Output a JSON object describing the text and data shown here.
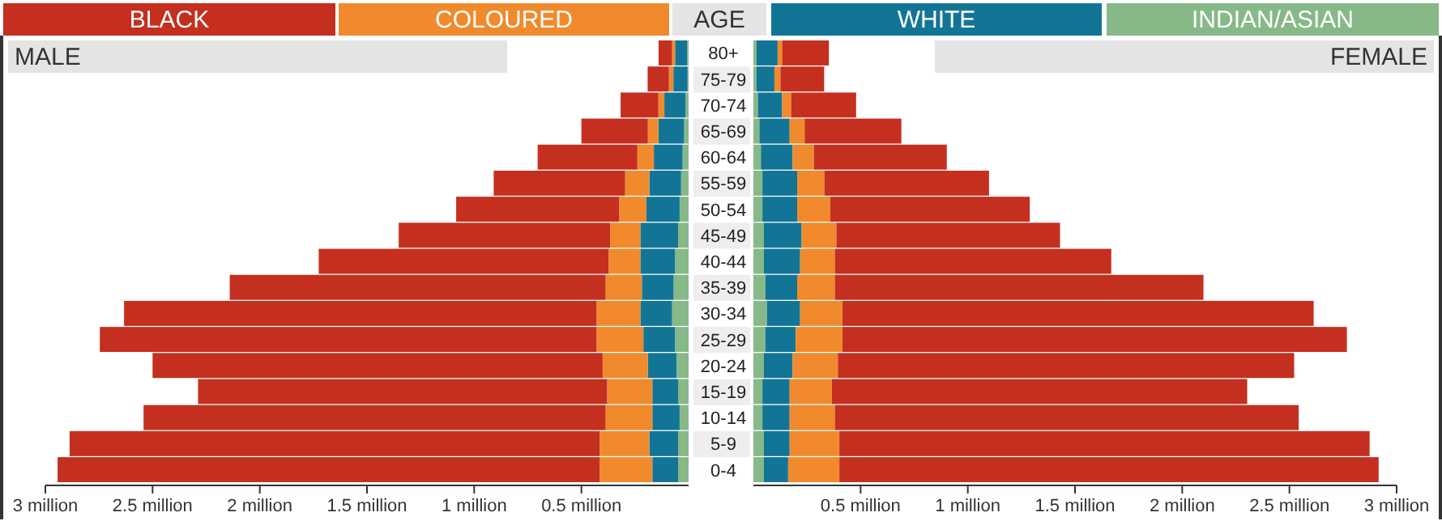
{
  "chart_data": [
    {
      "type": "bar",
      "orientation": "horizontal",
      "stacked": true,
      "title": "MALE",
      "legend": "top",
      "tick_labels": "x",
      "categories": [
        "80+",
        "75-79",
        "70-74",
        "65-69",
        "60-64",
        "55-59",
        "50-54",
        "45-49",
        "40-44",
        "35-39",
        "30-34",
        "25-29",
        "20-24",
        "15-19",
        "10-14",
        "5-9",
        "0-4"
      ],
      "xlim": [
        3,
        0
      ],
      "xticks": [
        {
          "value": 3,
          "label": "3 million"
        },
        {
          "value": 2.5,
          "label": "2.5 million"
        },
        {
          "value": 2,
          "label": "2 million"
        },
        {
          "value": 1.5,
          "label": "1.5 million"
        },
        {
          "value": 1,
          "label": "1 million"
        },
        {
          "value": 0.5,
          "label": "0.5 million"
        }
      ],
      "series": [
        {
          "name": "INDIAN/ASIAN",
          "color": "#86b987",
          "values": [
            0.007,
            0.005,
            0.014,
            0.021,
            0.028,
            0.035,
            0.042,
            0.049,
            0.063,
            0.07,
            0.077,
            0.063,
            0.056,
            0.049,
            0.042,
            0.049,
            0.049
          ]
        },
        {
          "name": "WHITE",
          "color": "#137596",
          "values": [
            0.056,
            0.066,
            0.099,
            0.12,
            0.134,
            0.148,
            0.155,
            0.176,
            0.162,
            0.148,
            0.148,
            0.148,
            0.134,
            0.12,
            0.127,
            0.134,
            0.12
          ]
        },
        {
          "name": "COLOURED",
          "color": "#f08a2c",
          "values": [
            0.014,
            0.021,
            0.028,
            0.049,
            0.077,
            0.113,
            0.127,
            0.141,
            0.148,
            0.169,
            0.204,
            0.218,
            0.211,
            0.211,
            0.218,
            0.232,
            0.246
          ]
        },
        {
          "name": "BLACK",
          "color": "#c42f1f",
          "values": [
            0.063,
            0.099,
            0.176,
            0.31,
            0.465,
            0.613,
            0.76,
            0.986,
            1.352,
            1.753,
            2.204,
            2.317,
            2.099,
            1.908,
            2.155,
            2.472,
            2.528
          ]
        }
      ]
    },
    {
      "type": "bar",
      "orientation": "horizontal",
      "stacked": true,
      "title": "FEMALE",
      "ylabel": "AGE",
      "categories": [
        "80+",
        "75-79",
        "70-74",
        "65-69",
        "60-64",
        "55-59",
        "50-54",
        "45-49",
        "40-44",
        "35-39",
        "30-34",
        "25-29",
        "20-24",
        "15-19",
        "10-14",
        "5-9",
        "0-4"
      ],
      "xlim": [
        0,
        3
      ],
      "xticks": [
        {
          "value": 0.5,
          "label": "0.5 million"
        },
        {
          "value": 1,
          "label": "1 million"
        },
        {
          "value": 1.5,
          "label": "1.5 million"
        },
        {
          "value": 2,
          "label": "2 million"
        },
        {
          "value": 2.5,
          "label": "2.5 million"
        },
        {
          "value": 3,
          "label": "3 million"
        }
      ],
      "series": [
        {
          "color": "#86b987",
          "values": [
            0.014,
            0.014,
            0.021,
            0.028,
            0.035,
            0.042,
            0.042,
            0.049,
            0.049,
            0.056,
            0.063,
            0.056,
            0.049,
            0.042,
            0.042,
            0.049,
            0.049
          ]
        },
        {
          "color": "#137596",
          "values": [
            0.099,
            0.084,
            0.113,
            0.141,
            0.148,
            0.162,
            0.162,
            0.176,
            0.169,
            0.148,
            0.155,
            0.141,
            0.134,
            0.127,
            0.127,
            0.12,
            0.113
          ]
        },
        {
          "color": "#f08a2c",
          "values": [
            0.021,
            0.028,
            0.042,
            0.07,
            0.099,
            0.127,
            0.155,
            0.162,
            0.162,
            0.176,
            0.197,
            0.218,
            0.211,
            0.197,
            0.211,
            0.232,
            0.239
          ]
        },
        {
          "color": "#c42f1f",
          "values": [
            0.218,
            0.204,
            0.303,
            0.451,
            0.62,
            0.768,
            0.93,
            1.043,
            1.289,
            1.719,
            2.198,
            2.353,
            2.128,
            1.937,
            2.163,
            2.473,
            2.515
          ]
        }
      ]
    }
  ]
}
